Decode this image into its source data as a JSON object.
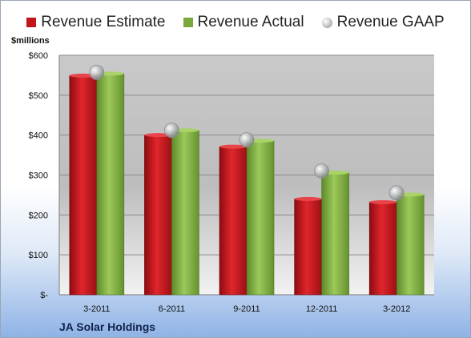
{
  "chart_data": {
    "type": "bar",
    "unit_label": "$millions",
    "company": "JA Solar Holdings",
    "categories": [
      "3-2011",
      "6-2011",
      "9-2011",
      "12-2011",
      "3-2012"
    ],
    "y_ticks": [
      {
        "value": 0,
        "label": "$-"
      },
      {
        "value": 100,
        "label": "$100"
      },
      {
        "value": 200,
        "label": "$200"
      },
      {
        "value": 300,
        "label": "$300"
      },
      {
        "value": 400,
        "label": "$400"
      },
      {
        "value": 500,
        "label": "$500"
      },
      {
        "value": 600,
        "label": "$600"
      }
    ],
    "ylim": [
      0,
      600
    ],
    "grid": true,
    "legend_position": "top",
    "series": [
      {
        "name": "Revenue Estimate",
        "kind": "bar",
        "color": "#c0151b",
        "values": [
          549,
          400,
          371,
          240,
          232
        ]
      },
      {
        "name": "Revenue Actual",
        "kind": "bar",
        "color": "#7aa83c",
        "values": [
          554,
          412,
          386,
          306,
          251
        ]
      },
      {
        "name": "Revenue GAAP",
        "kind": "point",
        "color": "#b9bcc0",
        "values": [
          557,
          412,
          388,
          310,
          255
        ]
      }
    ]
  }
}
